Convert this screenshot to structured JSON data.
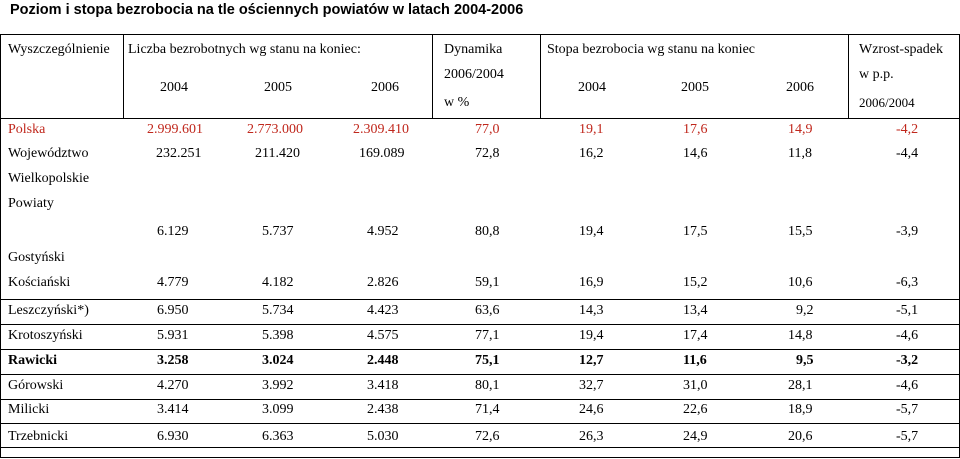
{
  "title": "Poziom i stopa bezrobocia na tle ościennych powiatów w latach 2004-2006",
  "header": {
    "col_spec": "Wyszczególnienie",
    "col_count": "Liczba bezrobotnych wg stanu na koniec:",
    "col_dyn_1": "Dynamika",
    "col_dyn_2": "2006/2004",
    "col_dyn_3": "w %",
    "col_rate": "Stopa bezrobocia wg stanu na koniec",
    "col_growth_1": "Wzrost-spadek",
    "col_growth_2": "w p.p.",
    "col_growth_3": "2006/2004",
    "years_count": [
      "2004",
      "2005",
      "2006"
    ],
    "years_rate": [
      "2004",
      "2005",
      "2006"
    ]
  },
  "rows": [
    {
      "name": "Polska",
      "c2004": "2.999.601",
      "c2005": "2.773.000",
      "c2006": "2.309.410",
      "dyn": "77,0",
      "r2004": "19,1",
      "r2005": "17,6",
      "r2006": "14,9",
      "growth": "-4,2"
    },
    {
      "name": "Województwo",
      "name2": "Wielkopolskie",
      "c2004": "232.251",
      "c2005": "211.420",
      "c2006": "169.089",
      "dyn": "72,8",
      "r2004": "16,2",
      "r2005": "14,6",
      "r2006": "11,8",
      "growth": "-4,4"
    },
    {
      "name": "Powiaty"
    },
    {
      "name": "Gostyński",
      "c2004": "6.129",
      "c2005": "5.737",
      "c2006": "4.952",
      "dyn": "80,8",
      "r2004": "19,4",
      "r2005": "17,5",
      "r2006": "15,5",
      "growth": "-3,9"
    },
    {
      "name": "Kościański",
      "c2004": "4.779",
      "c2005": "4.182",
      "c2006": "2.826",
      "dyn": "59,1",
      "r2004": "16,9",
      "r2005": "15,2",
      "r2006": "10,6",
      "growth": "-6,3"
    },
    {
      "name": "Leszczyński*)",
      "c2004": "6.950",
      "c2005": "5.734",
      "c2006": "4.423",
      "dyn": "63,6",
      "r2004": "14,3",
      "r2005": "13,4",
      "r2006": "9,2",
      "growth": "-5,1"
    },
    {
      "name": "Krotoszyński",
      "c2004": "5.931",
      "c2005": "5.398",
      "c2006": "4.575",
      "dyn": "77,1",
      "r2004": "19,4",
      "r2005": "17,4",
      "r2006": "14,8",
      "growth": "-4,6"
    },
    {
      "name": "Rawicki",
      "c2004": "3.258",
      "c2005": "3.024",
      "c2006": "2.448",
      "dyn": "75,1",
      "r2004": "12,7",
      "r2005": "11,6",
      "r2006": "9,5",
      "growth": "-3,2"
    },
    {
      "name": "Górowski",
      "c2004": "4.270",
      "c2005": "3.992",
      "c2006": "3.418",
      "dyn": "80,1",
      "r2004": "32,7",
      "r2005": "31,0",
      "r2006": "28,1",
      "growth": "-4,6"
    },
    {
      "name": "Milicki",
      "c2004": "3.414",
      "c2005": "3.099",
      "c2006": "2.438",
      "dyn": "71,4",
      "r2004": "24,6",
      "r2005": "22,6",
      "r2006": "18,9",
      "growth": "-5,7"
    },
    {
      "name": "Trzebnicki",
      "c2004": "6.930",
      "c2005": "6.363",
      "c2006": "5.030",
      "dyn": "72,6",
      "r2004": "26,3",
      "r2005": "24,9",
      "r2006": "20,6",
      "growth": "-5,7"
    }
  ],
  "colors": {
    "highlight": "#c0271c",
    "text": "#000000"
  }
}
